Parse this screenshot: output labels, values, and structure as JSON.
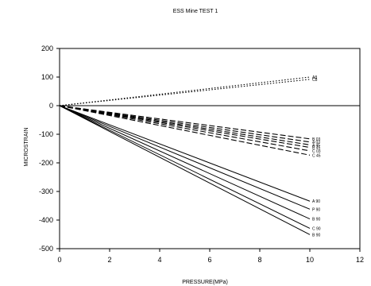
{
  "chart_data": {
    "type": "line",
    "title": "ESS Mine TEST 1",
    "xlabel": "PRESSURE(MPa)",
    "ylabel": "MICROSTRAIN",
    "xlim": [
      0,
      12
    ],
    "ylim": [
      -500,
      200
    ],
    "xticks": [
      0,
      2,
      4,
      6,
      8,
      10,
      12
    ],
    "yticks": [
      200,
      100,
      0,
      -100,
      -200,
      -300,
      -400,
      -500
    ],
    "grid": false,
    "legend": "none",
    "series": [
      {
        "name": "A8",
        "style": "dotted",
        "color": "#000000",
        "x": [
          0,
          10
        ],
        "y": [
          0,
          100
        ]
      },
      {
        "name": "C8",
        "style": "dotted",
        "color": "#000000",
        "x": [
          0,
          10
        ],
        "y": [
          0,
          92
        ]
      },
      {
        "name": "B 03",
        "style": "dashed",
        "color": "#000000",
        "x": [
          0,
          10
        ],
        "y": [
          0,
          -116
        ]
      },
      {
        "name": "A 03",
        "style": "dashed",
        "color": "#000000",
        "x": [
          0,
          10
        ],
        "y": [
          0,
          -127
        ]
      },
      {
        "name": "A 45",
        "style": "dashed",
        "color": "#000000",
        "x": [
          0,
          10
        ],
        "y": [
          0,
          -137
        ]
      },
      {
        "name": "B 45",
        "style": "dashed",
        "color": "#000000",
        "x": [
          0,
          10
        ],
        "y": [
          0,
          -146
        ]
      },
      {
        "name": "C 03",
        "style": "dashed",
        "color": "#000000",
        "x": [
          0,
          10
        ],
        "y": [
          0,
          -158
        ]
      },
      {
        "name": "C 45",
        "style": "dashed",
        "color": "#000000",
        "x": [
          0,
          10
        ],
        "y": [
          0,
          -173
        ]
      },
      {
        "name": "A 90",
        "style": "solid",
        "color": "#000000",
        "x": [
          0,
          10
        ],
        "y": [
          0,
          -334
        ]
      },
      {
        "name": "P 90",
        "style": "solid",
        "color": "#000000",
        "x": [
          0,
          10
        ],
        "y": [
          0,
          -362
        ]
      },
      {
        "name": "B 90",
        "style": "solid",
        "color": "#000000",
        "x": [
          0,
          10
        ],
        "y": [
          0,
          -396
        ]
      },
      {
        "name": "C 90",
        "style": "solid",
        "color": "#000000",
        "x": [
          0,
          10
        ],
        "y": [
          0,
          -429
        ]
      },
      {
        "name": "B 90",
        "style": "solid",
        "color": "#000000",
        "x": [
          0,
          10
        ],
        "y": [
          0,
          -451
        ]
      }
    ]
  }
}
